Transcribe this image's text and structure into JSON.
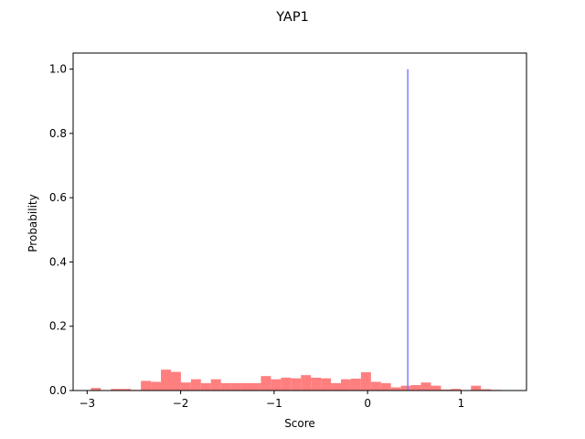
{
  "chart_data": {
    "type": "bar",
    "title": "YAP1",
    "xlabel": "Score",
    "ylabel": "Probability",
    "xlim": [
      -3.15,
      1.7
    ],
    "ylim": [
      0,
      1.05
    ],
    "xticks": [
      -3,
      -2,
      -1,
      0,
      1
    ],
    "xtick_labels": [
      "−3",
      "−2",
      "−1",
      "0",
      "1"
    ],
    "yticks": [
      0.0,
      0.2,
      0.4,
      0.6,
      0.8,
      1.0
    ],
    "ytick_labels": [
      "0.0",
      "0.2",
      "0.4",
      "0.6",
      "0.8",
      "1.0"
    ],
    "grid": false,
    "series": [
      {
        "kind": "histogram",
        "color": "#ff7f7f",
        "bin_width": 0.107,
        "bin_starts": [
          -2.96,
          -2.853,
          -2.746,
          -2.639,
          -2.532,
          -2.425,
          -2.318,
          -2.211,
          -2.104,
          -1.997,
          -1.89,
          -1.783,
          -1.676,
          -1.569,
          -1.462,
          -1.355,
          -1.248,
          -1.141,
          -1.034,
          -0.927,
          -0.82,
          -0.713,
          -0.606,
          -0.499,
          -0.392,
          -0.285,
          -0.178,
          -0.071,
          0.036,
          0.143,
          0.25,
          0.357,
          0.464,
          0.571,
          0.678,
          0.785,
          0.892,
          0.999,
          1.106,
          1.213,
          1.32
        ],
        "values": [
          0.008,
          0.0,
          0.005,
          0.005,
          0.002,
          0.03,
          0.027,
          0.065,
          0.058,
          0.025,
          0.035,
          0.023,
          0.035,
          0.023,
          0.023,
          0.023,
          0.023,
          0.045,
          0.035,
          0.04,
          0.038,
          0.048,
          0.04,
          0.038,
          0.023,
          0.035,
          0.037,
          0.057,
          0.027,
          0.023,
          0.01,
          0.015,
          0.017,
          0.025,
          0.015,
          0.003,
          0.005,
          0.0,
          0.015,
          0.004,
          0.002
        ]
      },
      {
        "kind": "vline",
        "color": "#7f7fff",
        "x": 0.43,
        "y": [
          0,
          1.0
        ]
      }
    ]
  }
}
